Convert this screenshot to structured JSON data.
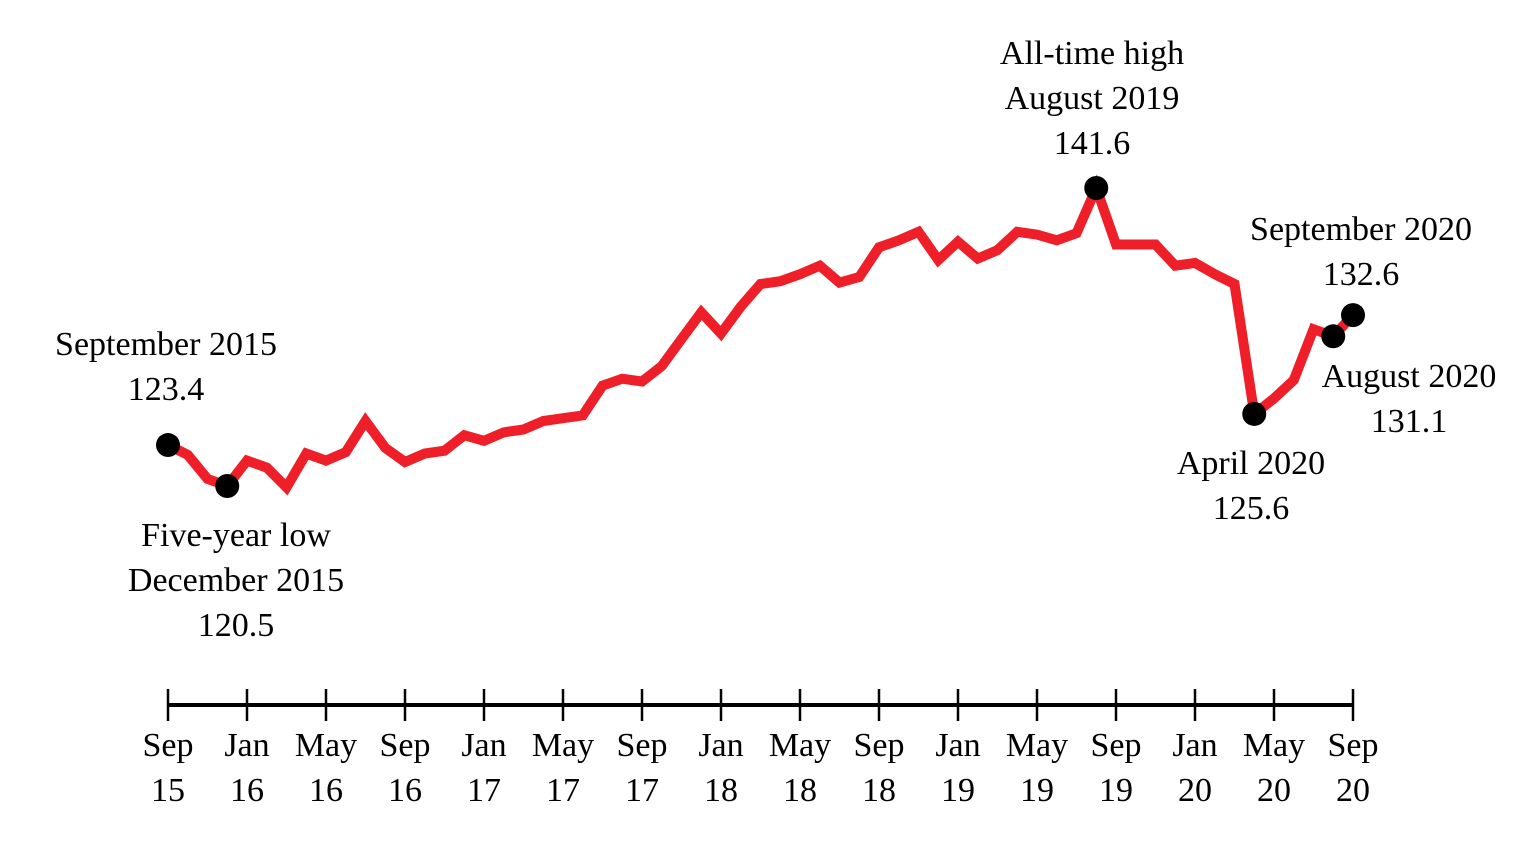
{
  "chart_data": {
    "type": "line",
    "title": "",
    "xlabel": "",
    "ylabel": "",
    "x_range": [
      "2015-09",
      "2020-09"
    ],
    "ylim": [
      100,
      150
    ],
    "grid": false,
    "colors": {
      "line": "#ee1f28",
      "marker": "#000000",
      "axis": "#000000"
    },
    "x_ticks": [
      {
        "month": "2015-09",
        "label_top": "Sep",
        "label_bottom": "15"
      },
      {
        "month": "2016-01",
        "label_top": "Jan",
        "label_bottom": "16"
      },
      {
        "month": "2016-05",
        "label_top": "May",
        "label_bottom": "16"
      },
      {
        "month": "2016-09",
        "label_top": "Sep",
        "label_bottom": "16"
      },
      {
        "month": "2017-01",
        "label_top": "Jan",
        "label_bottom": "17"
      },
      {
        "month": "2017-05",
        "label_top": "May",
        "label_bottom": "17"
      },
      {
        "month": "2017-09",
        "label_top": "Sep",
        "label_bottom": "17"
      },
      {
        "month": "2018-01",
        "label_top": "Jan",
        "label_bottom": "18"
      },
      {
        "month": "2018-05",
        "label_top": "May",
        "label_bottom": "18"
      },
      {
        "month": "2018-09",
        "label_top": "Sep",
        "label_bottom": "18"
      },
      {
        "month": "2019-01",
        "label_top": "Jan",
        "label_bottom": "19"
      },
      {
        "month": "2019-05",
        "label_top": "May",
        "label_bottom": "19"
      },
      {
        "month": "2019-09",
        "label_top": "Sep",
        "label_bottom": "19"
      },
      {
        "month": "2020-01",
        "label_top": "Jan",
        "label_bottom": "20"
      },
      {
        "month": "2020-05",
        "label_top": "May",
        "label_bottom": "20"
      },
      {
        "month": "2020-09",
        "label_top": "Sep",
        "label_bottom": "20"
      }
    ],
    "series": [
      {
        "x": [
          "2015-09",
          "2015-10",
          "2015-11",
          "2015-12",
          "2016-01",
          "2016-02",
          "2016-03",
          "2016-04",
          "2016-05",
          "2016-06",
          "2016-07",
          "2016-08",
          "2016-09",
          "2016-10",
          "2016-11",
          "2016-12",
          "2017-01",
          "2017-02",
          "2017-03",
          "2017-04",
          "2017-05",
          "2017-06",
          "2017-07",
          "2017-08",
          "2017-09",
          "2017-10",
          "2017-11",
          "2017-12",
          "2018-01",
          "2018-02",
          "2018-03",
          "2018-04",
          "2018-05",
          "2018-06",
          "2018-07",
          "2018-08",
          "2018-09",
          "2018-10",
          "2018-11",
          "2018-12",
          "2019-01",
          "2019-02",
          "2019-03",
          "2019-04",
          "2019-05",
          "2019-06",
          "2019-07",
          "2019-08",
          "2019-09",
          "2019-10",
          "2019-11",
          "2019-12",
          "2020-01",
          "2020-02",
          "2020-03",
          "2020-04",
          "2020-05",
          "2020-06",
          "2020-07",
          "2020-08",
          "2020-09"
        ],
        "y": [
          123.4,
          122.7,
          121.0,
          120.5,
          122.3,
          121.8,
          120.4,
          122.8,
          122.3,
          122.9,
          125.1,
          123.2,
          122.2,
          122.8,
          123.0,
          124.1,
          123.7,
          124.3,
          124.5,
          125.1,
          125.3,
          125.5,
          127.6,
          128.1,
          127.9,
          129.0,
          130.9,
          132.8,
          131.3,
          133.2,
          134.8,
          135.0,
          135.5,
          136.1,
          134.9,
          135.3,
          137.4,
          137.9,
          138.5,
          136.5,
          137.8,
          136.6,
          137.2,
          138.5,
          138.3,
          137.9,
          138.4,
          141.6,
          137.6,
          137.6,
          137.6,
          136.1,
          136.3,
          135.5,
          134.8,
          125.6,
          126.7,
          128.0,
          131.6,
          131.1,
          132.6
        ]
      }
    ],
    "annotations": [
      {
        "x": "2015-09",
        "y": 123.4,
        "lines": [
          "September 2015",
          "123.4"
        ]
      },
      {
        "x": "2015-12",
        "y": 120.5,
        "lines": [
          "Five-year low",
          "December 2015",
          "120.5"
        ]
      },
      {
        "x": "2019-08",
        "y": 141.6,
        "lines": [
          "All-time high",
          "August 2019",
          "141.6"
        ]
      },
      {
        "x": "2020-04",
        "y": 125.6,
        "lines": [
          "April 2020",
          "125.6"
        ]
      },
      {
        "x": "2020-08",
        "y": 131.1,
        "lines": [
          "August 2020",
          "131.1"
        ]
      },
      {
        "x": "2020-09",
        "y": 132.6,
        "lines": [
          "September 2020",
          "132.6"
        ]
      }
    ]
  }
}
